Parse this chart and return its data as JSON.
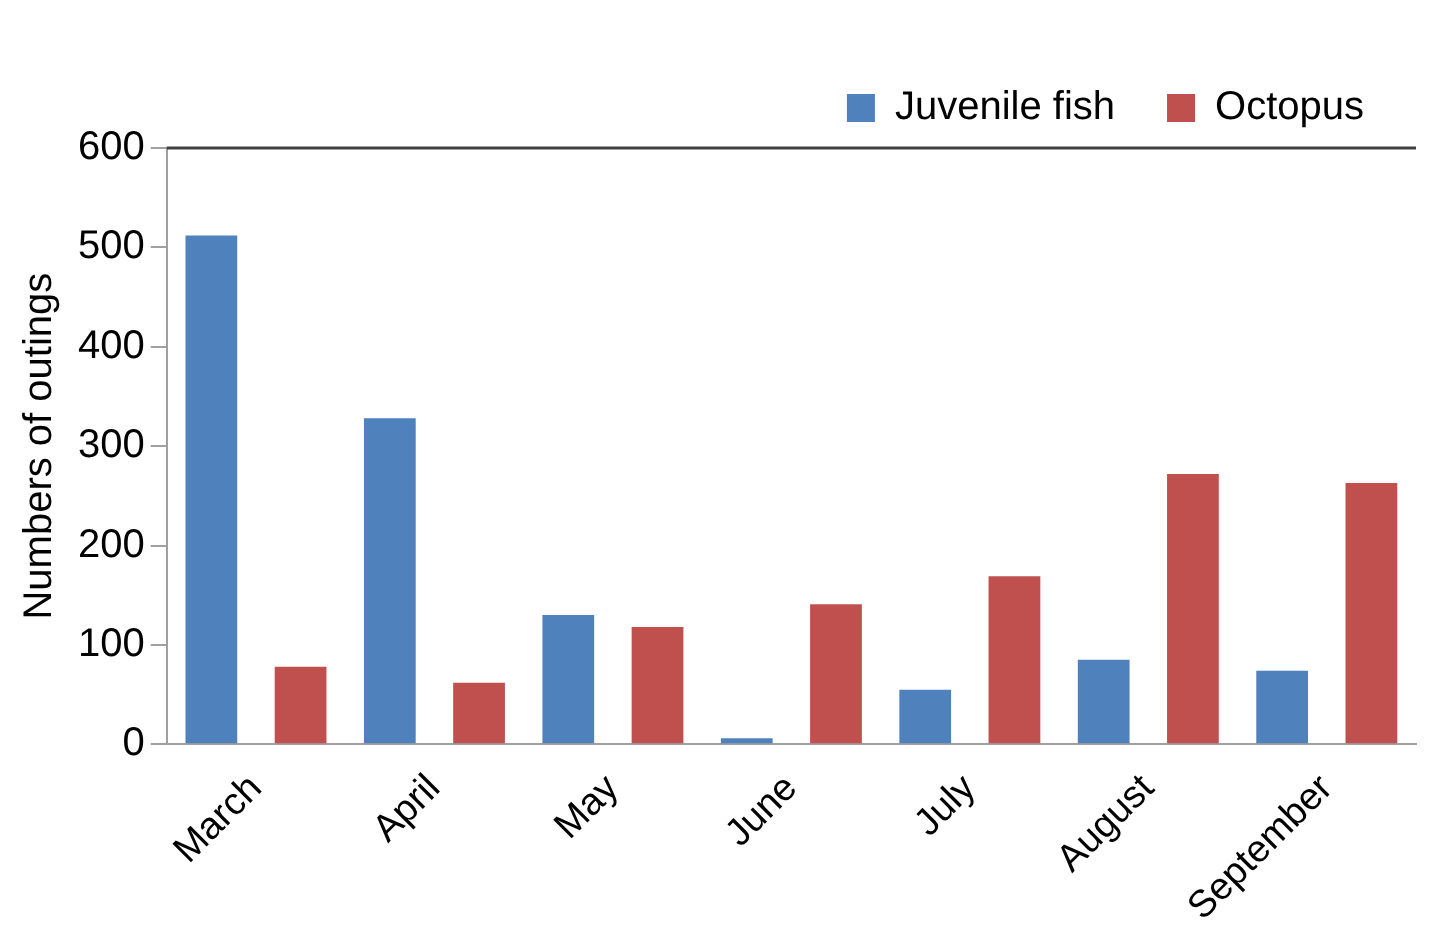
{
  "chart_data": {
    "type": "bar",
    "ylabel": "Numbers of outings",
    "categories": [
      "March",
      "April",
      "May",
      "June",
      "July",
      "August",
      "September"
    ],
    "series": [
      {
        "name": "Juvenile fish",
        "color": "#4f81bd",
        "values": [
          512,
          328,
          130,
          6,
          55,
          85,
          74
        ]
      },
      {
        "name": "Octopus",
        "color": "#c0504d",
        "values": [
          78,
          62,
          118,
          141,
          169,
          272,
          263
        ]
      }
    ],
    "ylim": [
      0,
      600
    ],
    "yticks": [
      0,
      100,
      200,
      300,
      400,
      500,
      600
    ],
    "grid": false,
    "legend": "top right"
  }
}
